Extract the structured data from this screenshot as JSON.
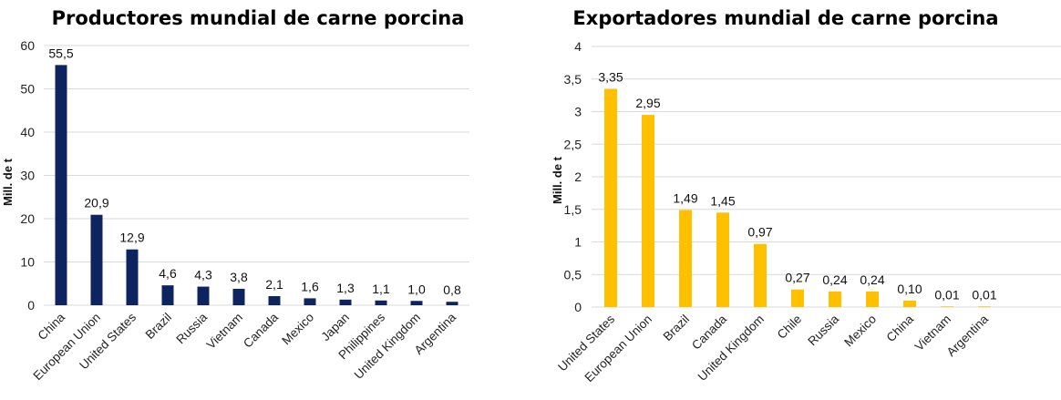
{
  "chart_data": [
    {
      "type": "bar",
      "title": "Productores mundial de carne porcina",
      "ylabel": "Mill. de t",
      "xlabel": "",
      "ylim": [
        0,
        60
      ],
      "yticks": [
        "0",
        "10",
        "20",
        "30",
        "40",
        "50",
        "60"
      ],
      "ytick_values": [
        0,
        10,
        20,
        30,
        40,
        50,
        60
      ],
      "grid": true,
      "color": "#0d2460",
      "categories": [
        "China",
        "European Union",
        "United States",
        "Brazil",
        "Russia",
        "Vietnam",
        "Canada",
        "Mexico",
        "Japan",
        "Philippines",
        "United Kingdom",
        "Argentina"
      ],
      "values": [
        55.5,
        20.9,
        12.9,
        4.6,
        4.3,
        3.8,
        2.1,
        1.6,
        1.3,
        1.1,
        1.0,
        0.8
      ],
      "data_labels": [
        "55,5",
        "20,9",
        "12,9",
        "4,6",
        "4,3",
        "3,8",
        "2,1",
        "1,6",
        "1,3",
        "1,1",
        "1,0",
        "0,8"
      ]
    },
    {
      "type": "bar",
      "title": "Exportadores mundial de carne porcina",
      "ylabel": "Mill. de t",
      "xlabel": "",
      "ylim": [
        0,
        4
      ],
      "yticks": [
        "0",
        "0,5",
        "1",
        "1,5",
        "2",
        "2,5",
        "3",
        "3,5",
        "4"
      ],
      "ytick_values": [
        0,
        0.5,
        1,
        1.5,
        2,
        2.5,
        3,
        3.5,
        4
      ],
      "grid": true,
      "color": "#ffc000",
      "categories": [
        "United States",
        "European Union",
        "Brazil",
        "Canada",
        "United Kingdom",
        "Chile",
        "Russia",
        "Mexico",
        "China",
        "Vietnam",
        "Argentina"
      ],
      "values": [
        3.35,
        2.95,
        1.49,
        1.45,
        0.97,
        0.27,
        0.24,
        0.24,
        0.1,
        0.01,
        0.01
      ],
      "data_labels": [
        "3,35",
        "2,95",
        "1,49",
        "1,45",
        "0,97",
        "0,27",
        "0,24",
        "0,24",
        "0,10",
        "0,01",
        "0,01"
      ]
    }
  ]
}
